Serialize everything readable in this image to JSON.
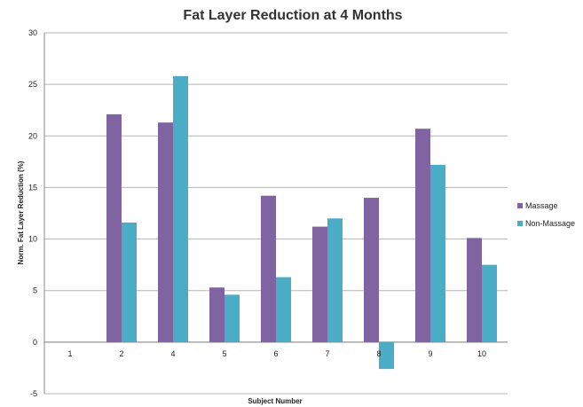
{
  "chart_data": {
    "type": "bar",
    "title": "Fat Layer Reduction at 4 Months",
    "xlabel": "Subject Number",
    "ylabel": "Norm. Fat Layer Reduction (%)",
    "ylim": [
      -5,
      30
    ],
    "yticks": [
      "-5",
      "0",
      "5",
      "10",
      "15",
      "20",
      "25",
      "30"
    ],
    "grid": true,
    "legend_position": "right",
    "categories": [
      "1",
      "2",
      "4",
      "5",
      "6",
      "7",
      "8",
      "9",
      "10"
    ],
    "series": [
      {
        "name": "Massage",
        "color": "#8064a2",
        "values": [
          0,
          22.1,
          21.3,
          5.3,
          14.2,
          11.2,
          14.0,
          20.7,
          10.1
        ]
      },
      {
        "name": "Non-Massage",
        "color": "#4bacc6",
        "values": [
          0,
          11.6,
          25.8,
          4.6,
          6.3,
          12.0,
          -2.6,
          17.2,
          7.5
        ]
      }
    ]
  }
}
